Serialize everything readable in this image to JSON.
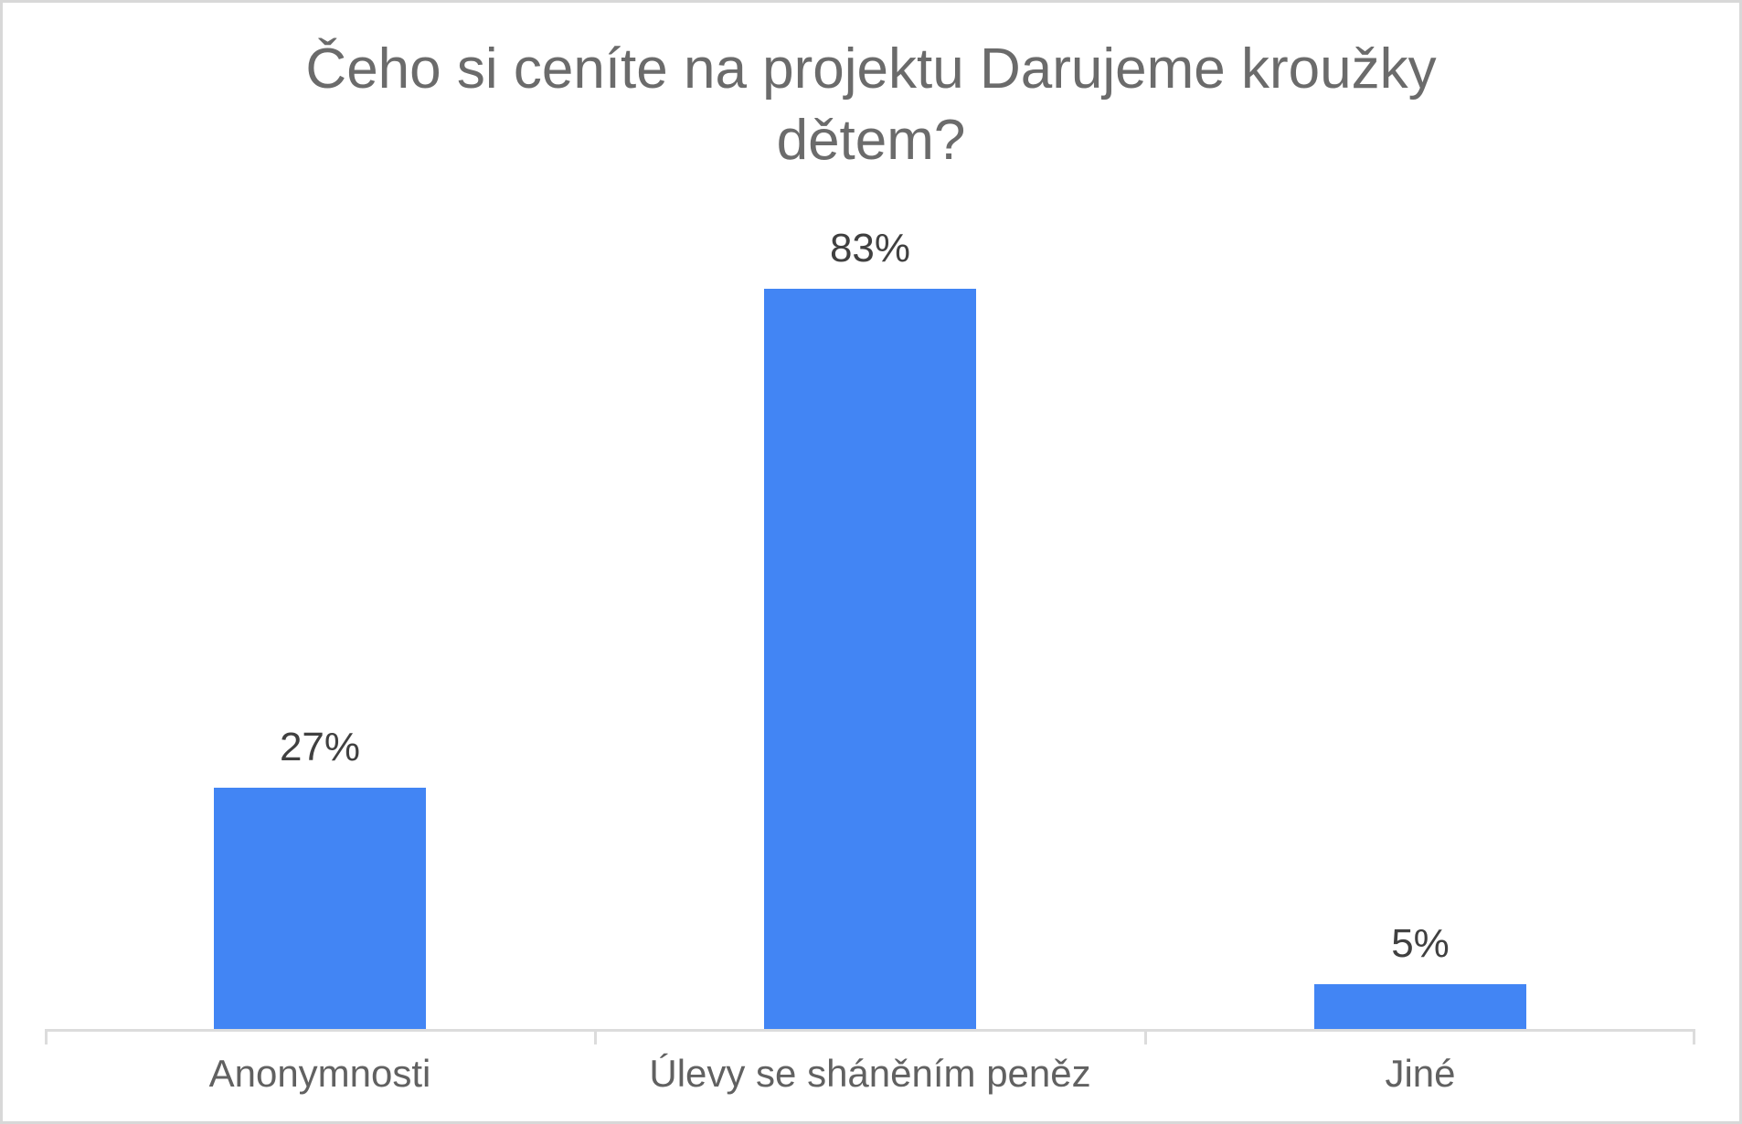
{
  "canvas": {
    "background": "#ffffff",
    "border_color": "#d8d8d8"
  },
  "chart_data": {
    "type": "bar",
    "title": "Čeho si ceníte na projektu Darujeme kroužky dětem?",
    "categories": [
      "Anonymnosti",
      "Úlevy se sháněním peněz",
      "Jiné"
    ],
    "values": [
      27,
      83,
      5
    ],
    "data_labels": [
      "27%",
      "83%",
      "5%"
    ],
    "xlabel": "",
    "ylabel": "",
    "ylim": [
      0,
      100
    ],
    "gridlines": false,
    "legend_position": "none",
    "colors": {
      "bar": "#4285f4",
      "title": "#6b6b6b",
      "data_label": "#404040",
      "axis_label": "#616161",
      "axis_line": "#dcdcdc"
    }
  }
}
